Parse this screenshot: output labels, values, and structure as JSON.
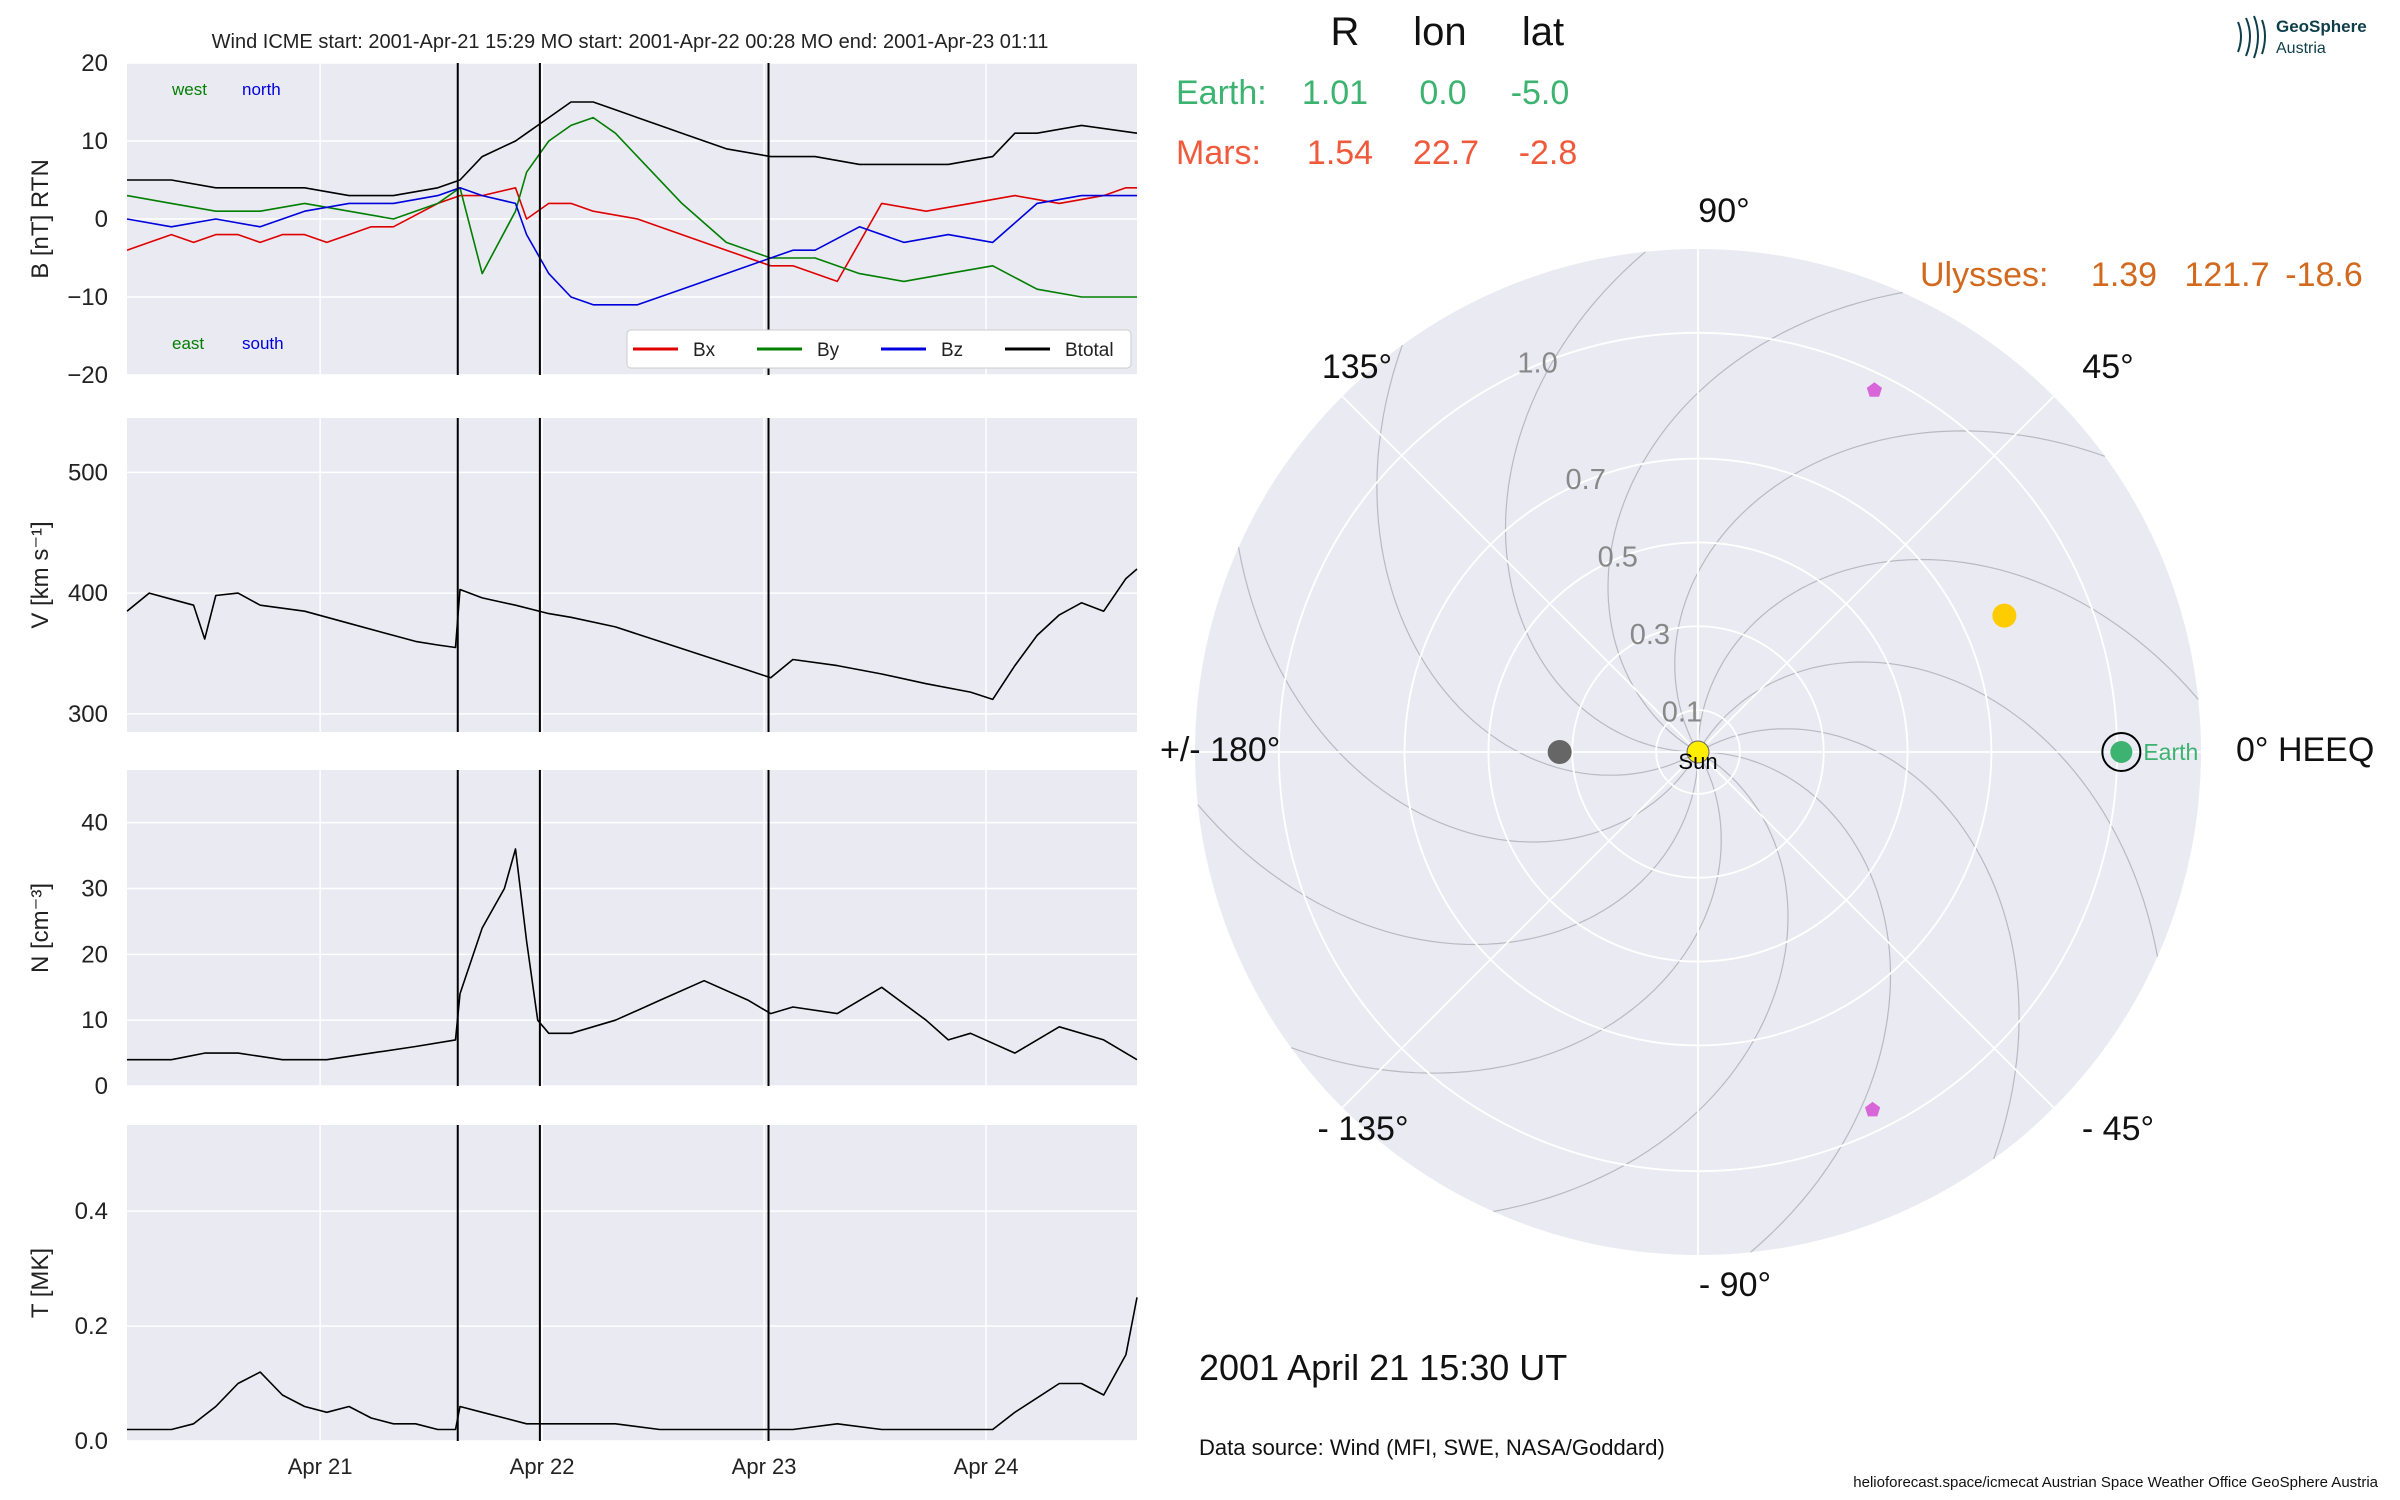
{
  "chart_data": [
    {
      "type": "line",
      "title": "Wind    ICME start: 2001-Apr-21 15:29   MO start: 2001-Apr-22 00:28   MO end: 2001-Apr-23 01:11",
      "ylabel": "B [nT] RTN",
      "ylim": [
        -20,
        20
      ],
      "yticks": [
        20,
        10,
        0,
        -10,
        -20
      ],
      "ytick_labels": [
        "20",
        "10",
        "0",
        "−10",
        "−20"
      ],
      "annotations": {
        "west": "west",
        "north": "north",
        "east": "east",
        "south": "south"
      },
      "legend": [
        "Bx",
        "By",
        "Bz",
        "Btotal"
      ],
      "legend_position": "lower right",
      "series": [
        {
          "name": "Bx",
          "color": "#e00000",
          "x": [
            0,
            0.1,
            0.2,
            0.3,
            0.4,
            0.5,
            0.6,
            0.7,
            0.8,
            0.9,
            1.0,
            1.1,
            1.2,
            1.4,
            1.5,
            1.6,
            1.75,
            1.8,
            1.9,
            2.0,
            2.1,
            2.3,
            2.5,
            2.7,
            2.9,
            3.0,
            3.2,
            3.4,
            3.6,
            3.8,
            4.0,
            4.2,
            4.4,
            4.5,
            4.55
          ],
          "y": [
            -4,
            -3,
            -2,
            -3,
            -2,
            -2,
            -3,
            -2,
            -2,
            -3,
            -2,
            -1,
            -1,
            2,
            3,
            3,
            4,
            0,
            2,
            2,
            1,
            0,
            -2,
            -4,
            -6,
            -6,
            -8,
            2,
            1,
            2,
            3,
            2,
            3,
            4,
            4
          ]
        },
        {
          "name": "By",
          "color": "#007f00",
          "x": [
            0,
            0.2,
            0.4,
            0.6,
            0.8,
            1.0,
            1.2,
            1.4,
            1.5,
            1.6,
            1.75,
            1.8,
            1.9,
            2.0,
            2.1,
            2.2,
            2.3,
            2.5,
            2.7,
            2.9,
            3.0,
            3.1,
            3.3,
            3.5,
            3.7,
            3.9,
            4.1,
            4.3,
            4.55
          ],
          "y": [
            3,
            2,
            1,
            1,
            2,
            1,
            0,
            2,
            4,
            -7,
            1,
            6,
            10,
            12,
            13,
            11,
            8,
            2,
            -3,
            -5,
            -5,
            -5,
            -7,
            -8,
            -7,
            -6,
            -9,
            -10,
            -10
          ]
        },
        {
          "name": "Bz",
          "color": "#0000dd",
          "x": [
            0,
            0.2,
            0.4,
            0.6,
            0.8,
            1.0,
            1.2,
            1.4,
            1.5,
            1.6,
            1.75,
            1.8,
            1.9,
            2.0,
            2.1,
            2.3,
            2.5,
            2.7,
            2.9,
            3.0,
            3.1,
            3.3,
            3.5,
            3.7,
            3.9,
            4.1,
            4.3,
            4.55
          ],
          "y": [
            0,
            -1,
            0,
            -1,
            1,
            2,
            2,
            3,
            4,
            3,
            2,
            -2,
            -7,
            -10,
            -11,
            -11,
            -9,
            -7,
            -5,
            -4,
            -4,
            -1,
            -3,
            -2,
            -3,
            2,
            3,
            3
          ]
        },
        {
          "name": "Btotal",
          "color": "#000000",
          "x": [
            0,
            0.2,
            0.4,
            0.6,
            0.8,
            1.0,
            1.2,
            1.4,
            1.5,
            1.6,
            1.75,
            1.8,
            1.9,
            2.0,
            2.1,
            2.2,
            2.3,
            2.5,
            2.7,
            2.9,
            3.0,
            3.1,
            3.3,
            3.5,
            3.7,
            3.9,
            4.0,
            4.1,
            4.3,
            4.55
          ],
          "y": [
            5,
            5,
            4,
            4,
            4,
            3,
            3,
            4,
            5,
            8,
            10,
            11,
            13,
            15,
            15,
            14,
            13,
            11,
            9,
            8,
            8,
            8,
            7,
            7,
            7,
            8,
            11,
            11,
            12,
            11
          ]
        }
      ]
    },
    {
      "type": "line",
      "ylabel": "V [km s⁻¹]",
      "ylim": [
        285,
        545
      ],
      "yticks": [
        500,
        400,
        300
      ],
      "series": [
        {
          "name": "",
          "color": "#000000",
          "x": [
            0,
            0.1,
            0.2,
            0.3,
            0.35,
            0.4,
            0.5,
            0.6,
            0.8,
            1.0,
            1.2,
            1.3,
            1.4,
            1.48,
            1.5,
            1.6,
            1.75,
            1.9,
            2.0,
            2.2,
            2.4,
            2.6,
            2.8,
            2.9,
            3.0,
            3.2,
            3.4,
            3.6,
            3.8,
            3.9,
            4.0,
            4.1,
            4.2,
            4.3,
            4.4,
            4.5,
            4.55
          ],
          "y": [
            385,
            400,
            395,
            390,
            362,
            398,
            400,
            390,
            385,
            375,
            365,
            360,
            357,
            355,
            403,
            396,
            390,
            383,
            380,
            372,
            360,
            348,
            336,
            330,
            345,
            340,
            333,
            325,
            318,
            312,
            340,
            365,
            382,
            392,
            385,
            412,
            420
          ]
        }
      ]
    },
    {
      "type": "line",
      "ylabel": "N [cm⁻³]",
      "ylim": [
        0,
        48
      ],
      "yticks": [
        40,
        30,
        20,
        10,
        0
      ],
      "series": [
        {
          "name": "",
          "color": "#000000",
          "x": [
            0,
            0.2,
            0.35,
            0.5,
            0.7,
            0.9,
            1.1,
            1.3,
            1.48,
            1.5,
            1.6,
            1.7,
            1.75,
            1.8,
            1.85,
            1.9,
            2.0,
            2.2,
            2.4,
            2.6,
            2.8,
            2.9,
            3.0,
            3.2,
            3.4,
            3.6,
            3.7,
            3.8,
            4.0,
            4.2,
            4.4,
            4.55
          ],
          "y": [
            4,
            4,
            5,
            5,
            4,
            4,
            5,
            6,
            7,
            14,
            24,
            30,
            36,
            22,
            10,
            8,
            8,
            10,
            13,
            16,
            13,
            11,
            12,
            11,
            15,
            10,
            7,
            8,
            5,
            9,
            7,
            4
          ]
        }
      ]
    },
    {
      "type": "line",
      "ylabel": "T [MK]",
      "ylim": [
        0,
        0.55
      ],
      "yticks": [
        0.4,
        0.2,
        0.0
      ],
      "ytick_labels": [
        "0.4",
        "0.2",
        "0.0"
      ],
      "xticks": [
        0.87,
        1.87,
        2.87,
        3.87
      ],
      "xtick_labels": [
        "Apr 21",
        "Apr 22",
        "Apr 23",
        "Apr 24"
      ],
      "series": [
        {
          "name": "",
          "color": "#000000",
          "x": [
            0,
            0.2,
            0.3,
            0.4,
            0.5,
            0.6,
            0.7,
            0.8,
            0.9,
            1.0,
            1.1,
            1.2,
            1.3,
            1.4,
            1.48,
            1.5,
            1.6,
            1.7,
            1.8,
            1.9,
            2.0,
            2.2,
            2.4,
            2.6,
            2.8,
            3.0,
            3.2,
            3.4,
            3.6,
            3.8,
            3.9,
            4.0,
            4.2,
            4.3,
            4.4,
            4.5,
            4.55
          ],
          "y": [
            0.02,
            0.02,
            0.03,
            0.06,
            0.1,
            0.12,
            0.08,
            0.06,
            0.05,
            0.06,
            0.04,
            0.03,
            0.03,
            0.02,
            0.02,
            0.06,
            0.05,
            0.04,
            0.03,
            0.03,
            0.03,
            0.03,
            0.02,
            0.02,
            0.02,
            0.02,
            0.03,
            0.02,
            0.02,
            0.02,
            0.02,
            0.05,
            0.1,
            0.1,
            0.08,
            0.15,
            0.25
          ]
        }
      ]
    },
    {
      "type": "scatter",
      "subtype": "polar",
      "rlim": [
        0,
        1.2
      ],
      "rticks": [
        0.1,
        0.3,
        0.5,
        0.7,
        1.0
      ],
      "angle_labels": [
        {
          "deg": 90,
          "text": "90°"
        },
        {
          "deg": 45,
          "text": "45°"
        },
        {
          "deg": 0,
          "text": "0° HEEQ"
        },
        {
          "deg": -45,
          "text": "- 45°"
        },
        {
          "deg": -90,
          "text": "- 90°"
        },
        {
          "deg": -135,
          "text": "- 135°"
        },
        {
          "deg": 180,
          "text": "+/- 180°"
        },
        {
          "deg": 135,
          "text": "135°"
        }
      ],
      "table_header": [
        "R",
        "lon",
        "lat"
      ],
      "table_rows": [
        {
          "name": "Earth:",
          "r": "1.01",
          "lon": "0.0",
          "lat": "-5.0",
          "color": "#3cb371"
        },
        {
          "name": "Mars:",
          "r": "1.54",
          "lon": "22.7",
          "lat": "-2.8",
          "color": "#f05a3c"
        },
        {
          "name": "Ulysses:",
          "r": "1.39",
          "lon": "121.7",
          "lat": "-18.6",
          "color": "#d2691e"
        }
      ],
      "points": [
        {
          "label": "Sun",
          "r": 0,
          "lon": 0,
          "color": "#ffee00",
          "marker": "circle",
          "size": 11
        },
        {
          "label": "Earth",
          "r": 1.01,
          "lon": 0,
          "color": "#3cb371",
          "marker": "circle",
          "size": 11,
          "ring": true
        },
        {
          "label": "",
          "r": 0.8,
          "lon": 24,
          "color": "#ffcc00",
          "marker": "circle",
          "size": 12
        },
        {
          "label": "",
          "r": 0.33,
          "lon": 180,
          "color": "#666666",
          "marker": "circle",
          "size": 12
        },
        {
          "label": "",
          "r": 0.96,
          "lon": 64,
          "color": "#d966d9",
          "marker": "pentagon",
          "size": 8
        },
        {
          "label": "",
          "r": 0.95,
          "lon": -64,
          "color": "#d966d9",
          "marker": "pentagon",
          "size": 8
        }
      ],
      "date_text": "2001 April 21  15:30 UT",
      "source_text": "Data source: Wind (MFI, SWE, NASA/Goddard)",
      "footer_text": "helioforecast.space/icmecat   Austrian Space Weather Office   GeoSphere Austria"
    }
  ],
  "logo": {
    "line1": "GeoSphere",
    "line2": "Austria",
    "color": "#0e3e4a"
  },
  "colors": {
    "panel_bg": "#eaeaf2",
    "grid": "#ffffff",
    "event_line": "#000000"
  },
  "events_x": [
    1.49,
    1.86,
    2.89
  ],
  "x_range": [
    0,
    4.55
  ]
}
